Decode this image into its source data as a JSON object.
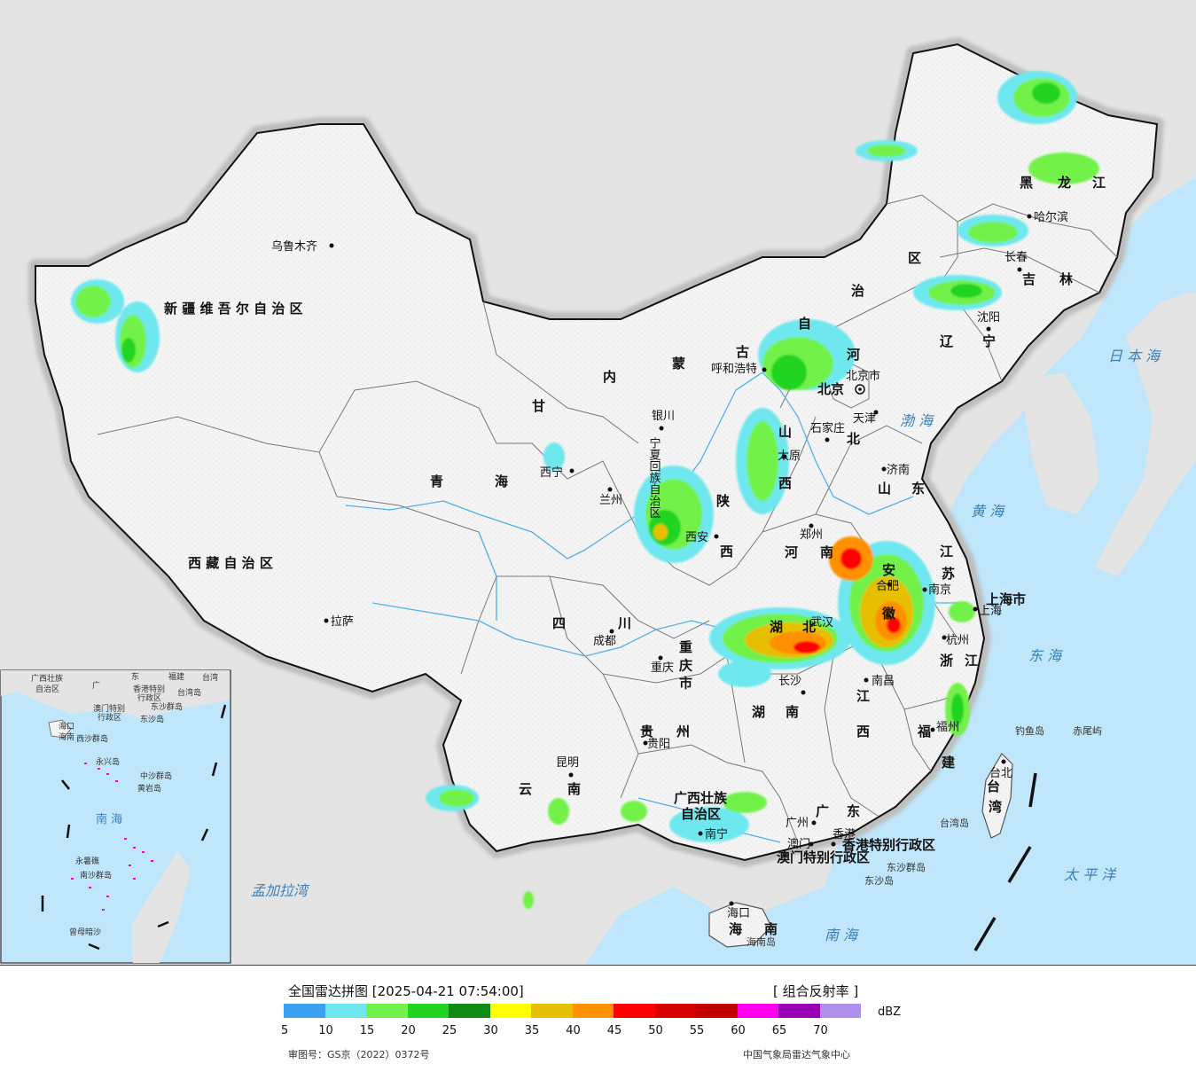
{
  "title": "全国雷达拼图 [2025-04-21 07:54:00]",
  "product": "[ 组合反射率 ]",
  "unit": "dBZ",
  "approval": "审图号：GS京（2022）0372号",
  "publisher": "中国气象局雷达气象中心",
  "scale": {
    "colors": [
      "#3ba0f0",
      "#6ee8ee",
      "#72f24a",
      "#22d422",
      "#108a10",
      "#ffff00",
      "#e6c000",
      "#ff9000",
      "#ff0000",
      "#d60000",
      "#c00000",
      "#ff00f0",
      "#9a00b4",
      "#ac90ec"
    ],
    "ticks": [
      "5",
      "10",
      "15",
      "20",
      "25",
      "30",
      "35",
      "40",
      "45",
      "50",
      "55",
      "60",
      "65",
      "70"
    ]
  },
  "provinces": {
    "xinjiang": "新 疆 维 吾 尔 自 治 区",
    "xizang": "西 藏 自 治 区",
    "qinghai_a": "青",
    "qinghai_b": "海",
    "gansu": "甘",
    "sichuan_a": "四",
    "sichuan_b": "川",
    "yunnan_a": "云",
    "yunnan_b": "南",
    "guizhou_a": "贵",
    "guizhou_b": "州",
    "chongqing": "重 庆 市",
    "guangxi_a": "广西壮族",
    "guangxi_b": "自治区",
    "guangdong_a": "广",
    "guangdong_b": "东",
    "hunan_a": "湖",
    "hunan_b": "南",
    "hubei_a": "湖",
    "hubei_b": "北",
    "jiangxi_a": "江",
    "jiangxi_b": "西",
    "fujian_a": "福",
    "fujian_b": "建",
    "zhejiang_a": "浙",
    "zhejiang_b": "江",
    "anhui_a": "安",
    "anhui_b": "徽",
    "jiangsu_a": "江",
    "jiangsu_b": "苏",
    "shanghai": "上海市",
    "shandong_a": "山",
    "shandong_b": "东",
    "henan_a": "河",
    "henan_b": "南",
    "shanxi_a": "山",
    "shanxi_b": "西",
    "shaanxi_a": "陕",
    "shaanxi_b": "西",
    "hebei_a": "河",
    "hebei_b": "北",
    "beijing": "北京",
    "ningxia": "宁夏回族自治区",
    "nmg_a": "内",
    "nmg_b": "蒙",
    "nmg_c": "古",
    "nmg_d": "自",
    "nmg_e": "治",
    "nmg_f": "区",
    "liaoning_a": "辽",
    "liaoning_b": "宁",
    "jilin_a": "吉",
    "jilin_b": "林",
    "hlj_a": "黑",
    "hlj_b": "龙",
    "hlj_c": "江",
    "hainan_a": "海",
    "hainan_b": "南",
    "taiwan_a": "台",
    "taiwan_b": "湾",
    "hk": "香港特别行政区",
    "macao": "澳门特别行政区"
  },
  "cities": {
    "urumqi": "乌鲁木齐",
    "lhasa": "拉萨",
    "xining": "西宁",
    "lanzhou": "兰州",
    "yinchuan": "银川",
    "hohhot": "呼和浩特",
    "beijing": "北京市",
    "tianjin": "天津",
    "shijiazhuang": "石家庄",
    "taiyuan": "太原",
    "jinan": "济南",
    "zhengzhou": "郑州",
    "xian": "西安",
    "chengdu": "成都",
    "chongqing": "重庆",
    "guiyang": "贵阳",
    "kunming": "昆明",
    "nanning": "南宁",
    "guangzhou": "广州",
    "aomen": "澳门",
    "xianggang": "香港",
    "haikou": "海口",
    "changsha": "长沙",
    "wuhan": "武汉",
    "nanchang": "南昌",
    "hangzhou": "杭州",
    "fuzhou": "福州",
    "taibei": "台北",
    "hefei": "合肥",
    "nanjing": "南京",
    "shanghai": "上海",
    "shenyang": "沈阳",
    "changchun": "长春",
    "harbin": "哈尔滨"
  },
  "seas": {
    "bohai": "渤 海",
    "huanghai": "黄 海",
    "donghai": "东 海",
    "nanhai": "南 海",
    "taipingyang": "太 平 洋",
    "ribenhai": "日 本 海",
    "mengjiala": "孟加拉湾"
  },
  "islands": {
    "diaoyu": "钓鱼岛",
    "chiwei": "赤尾屿",
    "taiwandao": "台湾岛",
    "dongsha1": "东沙群岛",
    "dongsha2": "东沙岛",
    "hainandao": "海南岛"
  },
  "inset": {
    "guangxi": "广西壮族",
    "zizhi": "自治区",
    "guang": "广",
    "dong": "东",
    "fujian": "福建",
    "taiwan": "台湾",
    "taiwandao": "台湾岛",
    "hk": "香港特别",
    "hk2": "行政区",
    "macao": "澳门特别",
    "macao2": "行政区",
    "dongsha": "东沙群岛",
    "dongshadao": "东沙岛",
    "haikou": "海口",
    "hainan": "海南",
    "xisha": "西沙群岛",
    "yongxing": "永兴岛",
    "zhongsha": "中沙群岛",
    "huangyan": "黄岩岛",
    "nanhai": "南 海",
    "nansha": "南沙群岛",
    "zengmu": "曾母暗沙",
    "yongshu": "永暑礁"
  }
}
